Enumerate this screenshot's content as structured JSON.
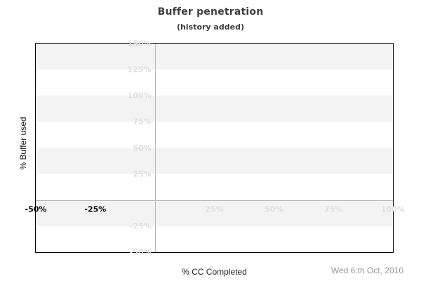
{
  "header": {
    "title": "Buffer penetration",
    "subtitle": "(history added)"
  },
  "footer": {
    "x_axis_title": "% CC Completed",
    "date": "Wed 6:th Oct, 2010"
  },
  "chart_data": {
    "type": "line",
    "title": "Buffer penetration",
    "subtitle": "(history added)",
    "xlabel": "% CC Completed",
    "ylabel": "% Buffer used",
    "xlim": [
      -50,
      100
    ],
    "ylim": [
      -50,
      150
    ],
    "series": [],
    "x_ticks": [
      {
        "value": -50,
        "label": "-50%",
        "emphasis": "dark"
      },
      {
        "value": -25,
        "label": "-25%",
        "emphasis": "dark"
      },
      {
        "value": 25,
        "label": "25%",
        "emphasis": "light"
      },
      {
        "value": 50,
        "label": "50%",
        "emphasis": "light"
      },
      {
        "value": 75,
        "label": "75%",
        "emphasis": "light"
      },
      {
        "value": 100,
        "label": "100%",
        "emphasis": "light"
      }
    ],
    "y_ticks": [
      {
        "value": 150,
        "label": "150%"
      },
      {
        "value": 125,
        "label": "125%"
      },
      {
        "value": 100,
        "label": "100%"
      },
      {
        "value": 75,
        "label": "75%"
      },
      {
        "value": 50,
        "label": "50%"
      },
      {
        "value": 25,
        "label": "25%"
      },
      {
        "value": -25,
        "label": "-25%"
      },
      {
        "value": -50,
        "label": "-50%"
      }
    ],
    "band_step": 25,
    "layout": {
      "grid": "horizontal alternating bands, zero cross-lines only",
      "legend": "none",
      "tick_labels_inside_plot": true
    },
    "colors": {
      "band": "#f3f3f3",
      "band_alt": "#ffffff",
      "zero_line": "#b9b9b9",
      "light_tick": "#dfdfdf",
      "dark_tick": "#000000",
      "plot_border": "#000000",
      "title_text": "#3d3d3d",
      "date_text": "#999999"
    }
  }
}
